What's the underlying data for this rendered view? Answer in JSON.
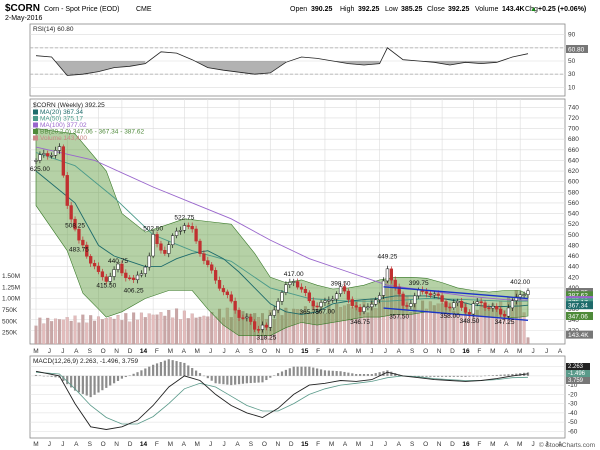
{
  "header": {
    "symbol": "$CORN",
    "name": "Corn - Spot Price (EOD)",
    "exchange": "CME",
    "date": "2-May-2016",
    "ohlc": {
      "open_label": "Open",
      "open": "390.25",
      "high_label": "High",
      "high": "392.25",
      "low_label": "Low",
      "low": "385.25",
      "close_label": "Close",
      "close": "392.25",
      "volume_label": "Volume",
      "volume": "143.4K",
      "chg_label": "Chg",
      "chg": "+0.25 (+0.06%)"
    },
    "up_arrow": "▲",
    "watermark": "© StockCharts.com"
  },
  "rsi": {
    "label": "RSI(14) 60.80",
    "ticks": [
      "90",
      "70",
      "50",
      "30",
      "10"
    ],
    "current_value": "60.80"
  },
  "price_panel": {
    "title": "$CORN (Weekly) 392.25",
    "legend": [
      {
        "text": "MA(20) 367.34",
        "color": "#1e6b6b"
      },
      {
        "text": "MA(50) 375.17",
        "color": "#4a9a8a"
      },
      {
        "text": "MA(100) 377.02",
        "color": "#9966cc"
      },
      {
        "text": "BB(20,2.0) 347.06 - 367.34 - 387.62",
        "color": "#4e8a3a"
      },
      {
        "text": "Volume 143,400",
        "color": "#cc8888"
      }
    ],
    "price_ticks": [
      "740",
      "720",
      "700",
      "680",
      "660",
      "640",
      "620",
      "600",
      "580",
      "560",
      "540",
      "520",
      "500",
      "480",
      "460",
      "440",
      "420",
      "400",
      "380",
      "360",
      "340",
      "320"
    ],
    "volume_ticks": [
      "1.50M",
      "1.25M",
      "1.00M",
      "750K",
      "500K",
      "250K"
    ],
    "right_badges": [
      {
        "text": "392.25",
        "color": "#777777",
        "price": 392.25
      },
      {
        "text": "387.62",
        "color": "#4e8a3a",
        "price": 386
      },
      {
        "text": "377.02",
        "color": "#9966cc",
        "price": 377.02
      },
      {
        "text": "375.17",
        "color": "#4a9a8a",
        "price": 373
      },
      {
        "text": "367.34",
        "color": "#1e6b6b",
        "price": 367.34
      },
      {
        "text": "347.06",
        "color": "#4e8a3a",
        "price": 347.06
      },
      {
        "text": "143.4K",
        "color": "#777777",
        "price": 312
      }
    ],
    "annotations": [
      {
        "text": "625.00",
        "x": 1,
        "y": 635,
        "pos": "below"
      },
      {
        "text": "508.25",
        "x": 10,
        "y": 508.25,
        "pos": "above"
      },
      {
        "text": "483.75",
        "x": 11,
        "y": 483.75,
        "pos": "below"
      },
      {
        "text": "415.50",
        "x": 18,
        "y": 415.5,
        "pos": "below"
      },
      {
        "text": "440.75",
        "x": 21,
        "y": 440.75,
        "pos": "above"
      },
      {
        "text": "406.25",
        "x": 25,
        "y": 406.25,
        "pos": "below"
      },
      {
        "text": "502.50",
        "x": 30,
        "y": 502.5,
        "pos": "above"
      },
      {
        "text": "522.75",
        "x": 38,
        "y": 522.75,
        "pos": "above"
      },
      {
        "text": "318.25",
        "x": 59,
        "y": 318.25,
        "pos": "below"
      },
      {
        "text": "417.00",
        "x": 66,
        "y": 417,
        "pos": "above"
      },
      {
        "text": "365.75",
        "x": 70,
        "y": 365.75,
        "pos": "below"
      },
      {
        "text": "367.00",
        "x": 74,
        "y": 367,
        "pos": "below"
      },
      {
        "text": "398.50",
        "x": 78,
        "y": 398.5,
        "pos": "above"
      },
      {
        "text": "346.75",
        "x": 83,
        "y": 346.75,
        "pos": "below"
      },
      {
        "text": "449.25",
        "x": 90,
        "y": 449.25,
        "pos": "above"
      },
      {
        "text": "357.50",
        "x": 93,
        "y": 357.5,
        "pos": "below"
      },
      {
        "text": "399.75",
        "x": 98,
        "y": 399.75,
        "pos": "above"
      },
      {
        "text": "358.00",
        "x": 106,
        "y": 358,
        "pos": "below"
      },
      {
        "text": "348.50",
        "x": 111,
        "y": 348.5,
        "pos": "below"
      },
      {
        "text": "347.25",
        "x": 120,
        "y": 347.25,
        "pos": "below"
      },
      {
        "text": "402.00",
        "x": 124,
        "y": 402,
        "pos": "above"
      }
    ]
  },
  "macd": {
    "label": "MACD(12,26,9) 2.263, -1.496, 3.759",
    "ticks": [
      "10",
      "0",
      "-10",
      "-20",
      "-30",
      "-40",
      "-50",
      "-60"
    ],
    "right_values": [
      "2.263",
      "-1.496",
      "3.759"
    ]
  },
  "x_axis": {
    "labels": [
      "M",
      "J",
      "J",
      "A",
      "S",
      "O",
      "N",
      "D",
      "14",
      "F",
      "M",
      "A",
      "M",
      "J",
      "J",
      "A",
      "S",
      "O",
      "N",
      "D",
      "15",
      "F",
      "M",
      "A",
      "M",
      "J",
      "J",
      "A",
      "S",
      "O",
      "N",
      "D",
      "16",
      "F",
      "M",
      "A",
      "M",
      "J",
      "J",
      "A"
    ]
  },
  "chart_data": [
    {
      "type": "line",
      "title": "$CORN Weekly - RSI(14)",
      "ylim": [
        0,
        100
      ],
      "reference_lines": [
        70,
        30
      ],
      "x_unit": "weeks from May 2013",
      "series": [
        {
          "name": "RSI(14)",
          "x": [
            0,
            4,
            8,
            12,
            16,
            20,
            24,
            28,
            32,
            36,
            40,
            44,
            48,
            52,
            56,
            60,
            64,
            68,
            72,
            76,
            80,
            84,
            88,
            90,
            94,
            98,
            102,
            106,
            110,
            114,
            118,
            122,
            126
          ],
          "values": [
            58,
            56,
            28,
            30,
            34,
            40,
            42,
            46,
            64,
            62,
            52,
            40,
            36,
            33,
            30,
            32,
            48,
            56,
            54,
            50,
            46,
            44,
            46,
            70,
            52,
            50,
            48,
            44,
            48,
            46,
            48,
            56,
            61
          ]
        }
      ]
    },
    {
      "type": "candlestick",
      "title": "$CORN (Weekly) 392.25",
      "ylim": [
        300,
        750
      ],
      "x_unit": "weeks from May 2013",
      "series": [
        {
          "name": "Close",
          "x": [
            0,
            2,
            4,
            6,
            8,
            10,
            11,
            12,
            14,
            16,
            18,
            20,
            21,
            22,
            24,
            25,
            27,
            29,
            30,
            31,
            33,
            34,
            36,
            38,
            40,
            42,
            44,
            46,
            48,
            50,
            52,
            54,
            56,
            58,
            59,
            60,
            62,
            64,
            66,
            68,
            70,
            72,
            74,
            76,
            78,
            80,
            82,
            83,
            84,
            86,
            88,
            89,
            90,
            92,
            94,
            96,
            98,
            100,
            102,
            104,
            106,
            108,
            110,
            111,
            112,
            114,
            116,
            118,
            120,
            122,
            124,
            126
          ],
          "values": [
            640,
            650,
            655,
            660,
            560,
            508,
            484,
            480,
            450,
            425,
            418,
            430,
            440,
            430,
            420,
            410,
            430,
            460,
            495,
            480,
            470,
            480,
            505,
            522,
            505,
            470,
            440,
            415,
            395,
            370,
            350,
            340,
            325,
            330,
            320,
            345,
            380,
            400,
            417,
            395,
            375,
            368,
            370,
            385,
            398,
            380,
            365,
            350,
            360,
            375,
            380,
            410,
            440,
            400,
            365,
            375,
            390,
            395,
            385,
            375,
            365,
            370,
            360,
            352,
            365,
            375,
            362,
            357,
            352,
            370,
            392,
            392
          ]
        },
        {
          "name": "MA(20) 367.34",
          "x": [
            0,
            10,
            16,
            20,
            24,
            28,
            32,
            36,
            40,
            44,
            48,
            52,
            56,
            60,
            64,
            68,
            72,
            76,
            80,
            84,
            88,
            92,
            96,
            100,
            104,
            108,
            112,
            116,
            120,
            124,
            126
          ],
          "values": [
            620,
            560,
            480,
            460,
            450,
            440,
            440,
            455,
            465,
            470,
            455,
            430,
            400,
            370,
            355,
            350,
            355,
            370,
            375,
            378,
            380,
            385,
            385,
            385,
            380,
            375,
            368,
            365,
            365,
            366,
            367.34
          ]
        },
        {
          "name": "MA(50) 375.17",
          "x": [
            0,
            10,
            20,
            30,
            40,
            50,
            60,
            70,
            80,
            90,
            100,
            110,
            120,
            126
          ],
          "values": [
            655,
            630,
            570,
            500,
            470,
            450,
            400,
            380,
            375,
            375,
            380,
            378,
            375,
            375.17
          ]
        },
        {
          "name": "MA(100) 377.02",
          "x": [
            0,
            15,
            30,
            40,
            50,
            60,
            70,
            80,
            90,
            100,
            110,
            120,
            126
          ],
          "values": [
            665,
            640,
            590,
            560,
            530,
            490,
            455,
            430,
            405,
            395,
            385,
            378,
            377.02
          ]
        },
        {
          "name": "BB upper",
          "x": [
            0,
            10,
            18,
            22,
            28,
            34,
            38,
            44,
            50,
            56,
            60,
            64,
            68,
            72,
            76,
            80,
            84,
            88,
            92,
            96,
            100,
            104,
            108,
            112,
            116,
            120,
            124,
            126
          ],
          "values": [
            700,
            690,
            620,
            540,
            505,
            520,
            530,
            525,
            520,
            465,
            420,
            410,
            415,
            405,
            398,
            400,
            405,
            415,
            420,
            420,
            418,
            410,
            400,
            395,
            392,
            395,
            395,
            387.62
          ]
        },
        {
          "name": "BB lower",
          "x": [
            0,
            8,
            12,
            16,
            18,
            22,
            28,
            34,
            40,
            44,
            48,
            52,
            56,
            60,
            64,
            68,
            72,
            76,
            80,
            84,
            88,
            92,
            96,
            100,
            104,
            108,
            112,
            116,
            120,
            124,
            126
          ],
          "values": [
            555,
            470,
            390,
            360,
            345,
            355,
            380,
            395,
            395,
            360,
            330,
            310,
            310,
            310,
            325,
            335,
            330,
            335,
            340,
            345,
            345,
            350,
            350,
            355,
            352,
            350,
            348,
            345,
            343,
            345,
            347.06
          ]
        }
      ],
      "trendlines": [
        {
          "x": [
            89,
            126
          ],
          "values": [
            402,
            380
          ]
        },
        {
          "x": [
            89,
            126
          ],
          "values": [
            362,
            339
          ]
        }
      ]
    },
    {
      "type": "bar",
      "title": "Volume 143,400",
      "ylim": [
        0,
        1500000
      ],
      "x_unit": "weeks from May 2013",
      "series": [
        {
          "name": "Volume",
          "x": [
            0,
            6,
            12,
            18,
            24,
            30,
            36,
            42,
            48,
            54,
            58,
            62,
            66,
            72,
            78,
            84,
            88,
            90,
            96,
            102,
            108,
            114,
            120,
            124,
            126
          ],
          "values": [
            500000,
            520000,
            560000,
            540000,
            600000,
            620000,
            680000,
            560000,
            700000,
            650000,
            600000,
            700000,
            720000,
            780000,
            800000,
            850000,
            900000,
            1500000,
            820000,
            850000,
            800000,
            780000,
            850000,
            1100000,
            143400
          ]
        }
      ]
    },
    {
      "type": "line",
      "title": "MACD(12,26,9) 2.263, -1.496, 3.759",
      "ylim": [
        -65,
        15
      ],
      "x_unit": "weeks from May 2013",
      "series": [
        {
          "name": "MACD",
          "x": [
            0,
            6,
            10,
            14,
            18,
            22,
            26,
            30,
            34,
            38,
            42,
            46,
            50,
            54,
            58,
            62,
            66,
            70,
            74,
            78,
            82,
            86,
            90,
            94,
            98,
            102,
            106,
            110,
            114,
            118,
            122,
            126
          ],
          "values": [
            5,
            0,
            -30,
            -55,
            -58,
            -55,
            -48,
            -32,
            -12,
            0,
            -5,
            -20,
            -32,
            -40,
            -45,
            -35,
            -20,
            -10,
            -8,
            -5,
            -6,
            -4,
            4,
            0,
            -2,
            -4,
            -5,
            -6,
            -5,
            -3,
            0,
            2.263
          ]
        },
        {
          "name": "Signal",
          "x": [
            0,
            6,
            10,
            14,
            18,
            22,
            26,
            30,
            34,
            38,
            42,
            46,
            50,
            54,
            58,
            62,
            66,
            70,
            74,
            78,
            82,
            86,
            90,
            94,
            98,
            102,
            106,
            110,
            114,
            118,
            122,
            126
          ],
          "values": [
            4,
            2,
            -14,
            -32,
            -45,
            -52,
            -52,
            -44,
            -30,
            -14,
            -8,
            -12,
            -22,
            -32,
            -38,
            -38,
            -30,
            -20,
            -14,
            -10,
            -8,
            -6,
            -2,
            0,
            -1,
            -3,
            -4,
            -5,
            -5,
            -4,
            -2,
            -1.496
          ]
        },
        {
          "name": "Histogram",
          "x": [
            0,
            6,
            10,
            14,
            18,
            22,
            26,
            30,
            34,
            38,
            42,
            46,
            50,
            54,
            58,
            62,
            66,
            70,
            74,
            78,
            82,
            86,
            90,
            94,
            98,
            102,
            106,
            110,
            114,
            118,
            122,
            126
          ],
          "values": [
            1,
            -2,
            -16,
            -23,
            -13,
            -3,
            4,
            12,
            18,
            14,
            3,
            -8,
            -10,
            -8,
            -7,
            3,
            10,
            10,
            6,
            5,
            2,
            2,
            6,
            0,
            -1,
            -1,
            -1,
            -1,
            0,
            1,
            2,
            3.759
          ]
        }
      ]
    }
  ]
}
